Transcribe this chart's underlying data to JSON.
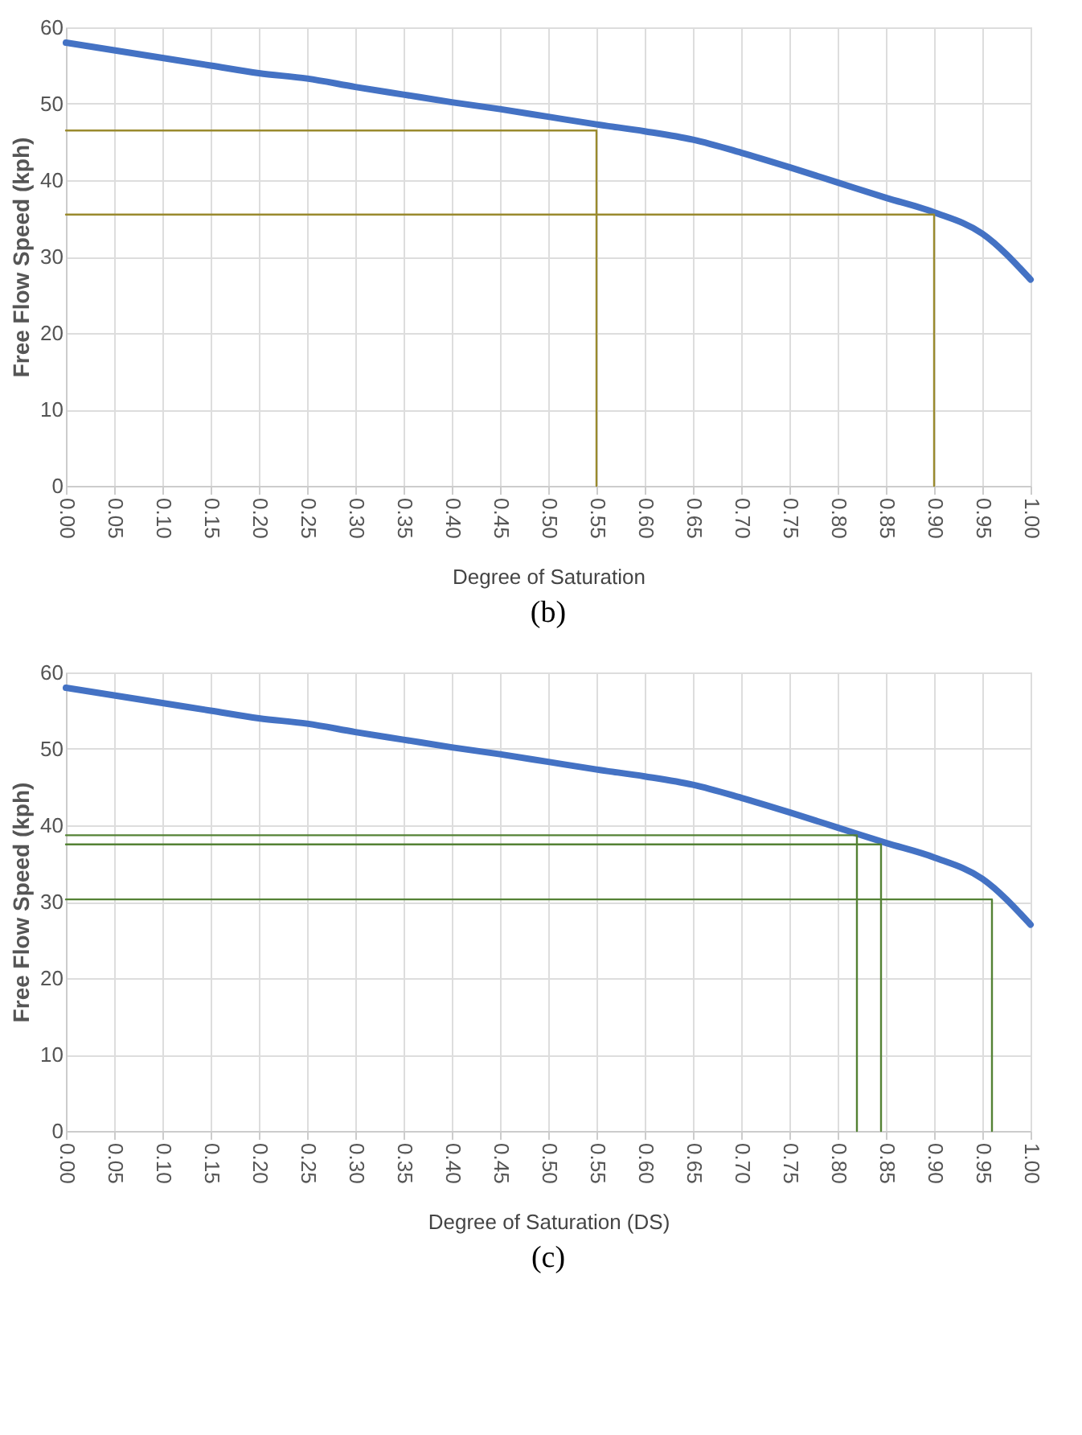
{
  "chart_data": [
    {
      "type": "line",
      "title": "(b)",
      "xlabel": "Degree of Saturation",
      "ylabel": "Free Flow Speed (kph)",
      "x": [
        0,
        0.05,
        0.1,
        0.15,
        0.2,
        0.25,
        0.3,
        0.35,
        0.4,
        0.45,
        0.5,
        0.55,
        0.6,
        0.65,
        0.7,
        0.75,
        0.8,
        0.85,
        0.9,
        0.95,
        1.0
      ],
      "xlim": [
        0,
        1
      ],
      "ylim": [
        0,
        60
      ],
      "yticks": [
        0,
        10,
        20,
        30,
        40,
        50,
        60
      ],
      "xticks": [
        {
          "value": 0,
          "label": "0.00"
        },
        {
          "value": 0.05,
          "label": "0.05"
        },
        {
          "value": 0.1,
          "label": "0.10"
        },
        {
          "value": 0.15,
          "label": "0.15"
        },
        {
          "value": 0.2,
          "label": "0.20"
        },
        {
          "value": 0.25,
          "label": "0.25"
        },
        {
          "value": 0.3,
          "label": "0.30"
        },
        {
          "value": 0.35,
          "label": "0.35"
        },
        {
          "value": 0.4,
          "label": "0.40"
        },
        {
          "value": 0.45,
          "label": "0.45"
        },
        {
          "value": 0.5,
          "label": "0.50"
        },
        {
          "value": 0.55,
          "label": "0.55"
        },
        {
          "value": 0.6,
          "label": "0.60"
        },
        {
          "value": 0.65,
          "label": "0.65"
        },
        {
          "value": 0.7,
          "label": "0.70"
        },
        {
          "value": 0.75,
          "label": "0.75"
        },
        {
          "value": 0.8,
          "label": "0.80"
        },
        {
          "value": 0.85,
          "label": "0.85"
        },
        {
          "value": 0.9,
          "label": "0.90"
        },
        {
          "value": 0.95,
          "label": "0.95"
        },
        {
          "value": 1.0,
          "label": "1.00"
        }
      ],
      "grid": true,
      "series": [
        {
          "color": "#4472c4",
          "values": [
            58,
            57,
            56,
            55,
            54,
            53.3,
            52.2,
            51.2,
            50.2,
            49.3,
            48.3,
            47.3,
            46.4,
            45.3,
            43.6,
            41.7,
            39.7,
            37.7,
            35.8,
            33,
            27
          ]
        },
        {
          "type": "line",
          "color": "#9a8a2e",
          "x": [
            0,
            0.55,
            0.55
          ],
          "values": [
            46.5,
            46.5,
            0
          ]
        },
        {
          "type": "line",
          "color": "#9a8a2e",
          "x": [
            0,
            0.9,
            0.9
          ],
          "values": [
            35.5,
            35.5,
            0
          ]
        }
      ]
    },
    {
      "type": "line",
      "title": "(c)",
      "xlabel": "Degree of Saturation (DS)",
      "ylabel": "Free Flow Speed (kph)",
      "x": [
        0,
        0.05,
        0.1,
        0.15,
        0.2,
        0.25,
        0.3,
        0.35,
        0.4,
        0.45,
        0.5,
        0.55,
        0.6,
        0.65,
        0.7,
        0.75,
        0.8,
        0.85,
        0.9,
        0.95,
        1.0
      ],
      "xlim": [
        0,
        1
      ],
      "ylim": [
        0,
        60
      ],
      "yticks": [
        0,
        10,
        20,
        30,
        40,
        50,
        60
      ],
      "xticks": [
        {
          "value": 0,
          "label": "0.00"
        },
        {
          "value": 0.05,
          "label": "0.05"
        },
        {
          "value": 0.1,
          "label": "0.10"
        },
        {
          "value": 0.15,
          "label": "0.15"
        },
        {
          "value": 0.2,
          "label": "0.20"
        },
        {
          "value": 0.25,
          "label": "0.25"
        },
        {
          "value": 0.3,
          "label": "0.30"
        },
        {
          "value": 0.35,
          "label": "0.35"
        },
        {
          "value": 0.4,
          "label": "0.40"
        },
        {
          "value": 0.45,
          "label": "0.45"
        },
        {
          "value": 0.5,
          "label": "0.50"
        },
        {
          "value": 0.55,
          "label": "0.55"
        },
        {
          "value": 0.6,
          "label": "0.60"
        },
        {
          "value": 0.65,
          "label": "0.65"
        },
        {
          "value": 0.7,
          "label": "0.70"
        },
        {
          "value": 0.75,
          "label": "0.75"
        },
        {
          "value": 0.8,
          "label": "0.80"
        },
        {
          "value": 0.85,
          "label": "0.85"
        },
        {
          "value": 0.9,
          "label": "0.90"
        },
        {
          "value": 0.95,
          "label": "0.95"
        },
        {
          "value": 1.0,
          "label": "1.00"
        }
      ],
      "grid": true,
      "series": [
        {
          "color": "#4472c4",
          "values": [
            58,
            57,
            56,
            55,
            54,
            53.3,
            52.2,
            51.2,
            50.2,
            49.3,
            48.3,
            47.3,
            46.4,
            45.3,
            43.6,
            41.7,
            39.7,
            37.7,
            35.8,
            33,
            27
          ]
        },
        {
          "type": "line",
          "color": "#548235",
          "x": [
            0,
            0.82,
            0.82
          ],
          "values": [
            38.7,
            38.7,
            0
          ]
        },
        {
          "type": "line",
          "color": "#548235",
          "x": [
            0,
            0.845,
            0.845
          ],
          "values": [
            37.5,
            37.5,
            0
          ]
        },
        {
          "type": "line",
          "color": "#548235",
          "x": [
            0,
            0.96,
            0.96
          ],
          "values": [
            30.3,
            30.3,
            0
          ]
        }
      ]
    }
  ]
}
